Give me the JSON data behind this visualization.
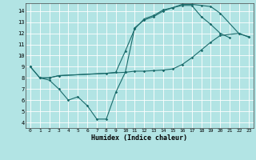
{
  "xlabel": "Humidex (Indice chaleur)",
  "bg_color": "#b2e4e4",
  "grid_color": "#ffffff",
  "line_color": "#1a6b6b",
  "xlim": [
    -0.5,
    23.5
  ],
  "ylim": [
    3.5,
    14.7
  ],
  "xticks": [
    0,
    1,
    2,
    3,
    4,
    5,
    6,
    7,
    8,
    9,
    10,
    11,
    12,
    13,
    14,
    15,
    16,
    17,
    18,
    19,
    20,
    21,
    22,
    23
  ],
  "yticks": [
    4,
    5,
    6,
    7,
    8,
    9,
    10,
    11,
    12,
    13,
    14
  ],
  "line1_x": [
    0,
    1,
    2,
    3,
    4,
    5,
    6,
    7,
    8,
    9,
    10,
    11,
    12,
    13,
    14,
    15,
    16,
    17,
    18,
    19,
    20,
    21
  ],
  "line1_y": [
    9,
    8,
    7.8,
    7,
    6.0,
    6.3,
    5.5,
    4.3,
    4.3,
    6.7,
    8.5,
    12.5,
    13.2,
    13.5,
    14.0,
    14.3,
    14.5,
    14.5,
    13.5,
    12.8,
    12.0,
    11.6
  ],
  "line2_x": [
    0,
    1,
    2,
    3,
    10,
    11,
    12,
    13,
    14,
    15,
    16,
    17,
    18,
    19,
    20,
    22,
    23
  ],
  "line2_y": [
    9,
    8,
    8,
    8.2,
    8.5,
    8.6,
    8.6,
    8.65,
    8.7,
    8.8,
    9.2,
    9.8,
    10.5,
    11.2,
    11.8,
    12.0,
    11.65
  ],
  "line3_x": [
    1,
    2,
    3,
    8,
    9,
    10,
    11,
    12,
    13,
    14,
    15,
    16,
    17,
    18,
    19,
    20,
    22,
    23
  ],
  "line3_y": [
    8,
    8,
    8.2,
    8.4,
    8.5,
    10.4,
    12.4,
    13.3,
    13.6,
    14.1,
    14.3,
    14.6,
    14.6,
    14.5,
    14.4,
    13.8,
    11.95,
    11.7
  ]
}
